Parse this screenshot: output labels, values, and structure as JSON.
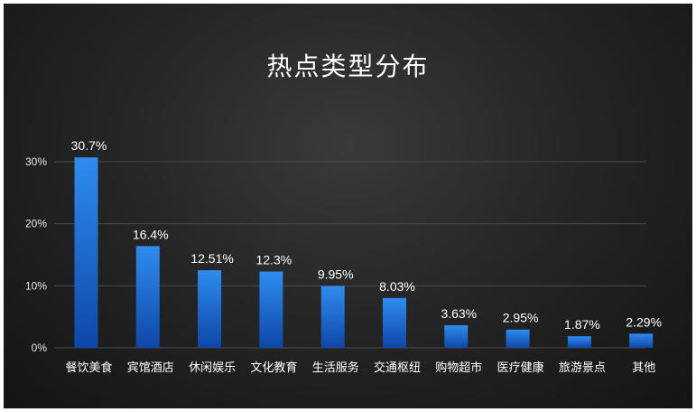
{
  "chart_data": {
    "type": "bar",
    "title": "热点类型分布",
    "xlabel": "",
    "ylabel": "",
    "categories": [
      "餐饮美食",
      "宾馆酒店",
      "休闲娱乐",
      "文化教育",
      "生活服务",
      "交通枢纽",
      "购物超市",
      "医疗健康",
      "旅游景点",
      "其他"
    ],
    "values": [
      30.7,
      16.4,
      12.51,
      12.3,
      9.95,
      8.03,
      3.63,
      2.95,
      1.87,
      2.29
    ],
    "value_labels": [
      "30.7%",
      "16.4%",
      "12.51%",
      "12.3%",
      "9.95%",
      "8.03%",
      "3.63%",
      "2.95%",
      "1.87%",
      "2.29%"
    ],
    "ylim": [
      0,
      30
    ],
    "yticks": [
      0,
      10,
      20,
      30
    ],
    "ytick_labels": [
      "0%",
      "10%",
      "20%",
      "30%"
    ],
    "grid": true,
    "legend": "none",
    "colors": {
      "bar_top": "#2f8cf0",
      "bar_bottom": "#0d47a8",
      "grid": "#4a4a4a",
      "text": "#ffffff"
    }
  }
}
